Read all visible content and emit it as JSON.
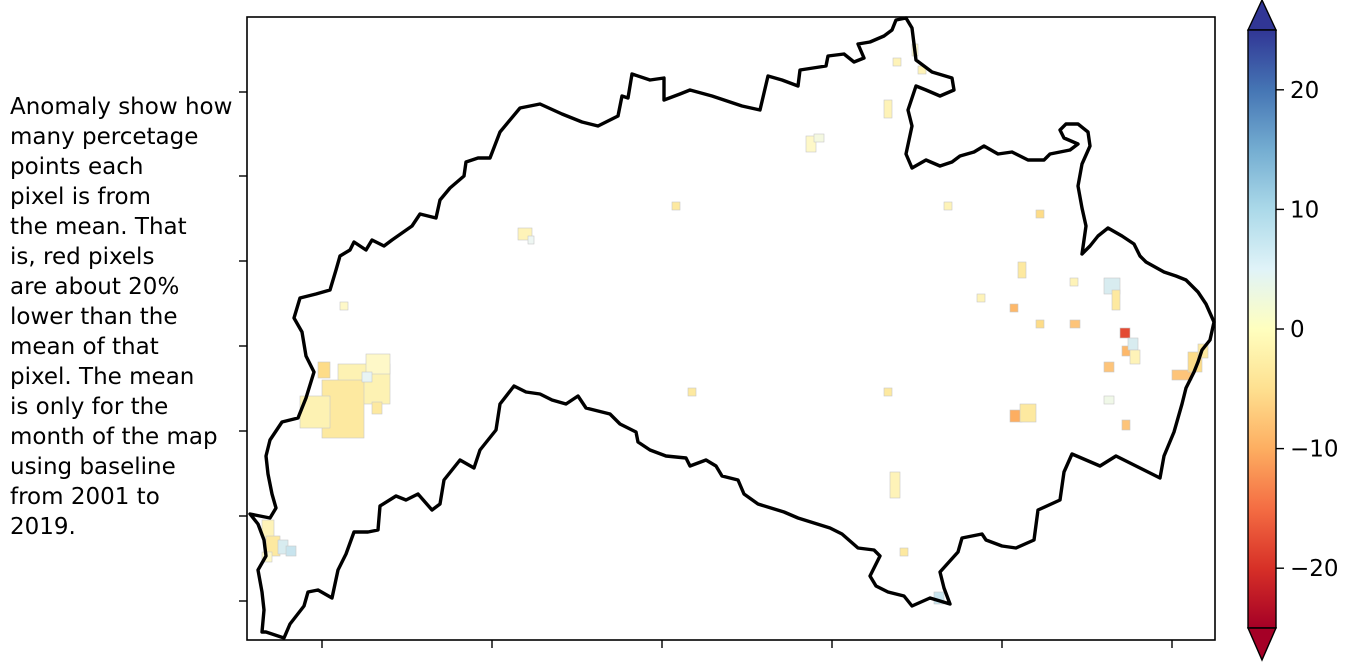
{
  "annotation": {
    "lines": [
      "Anomaly show how",
      "many percetage",
      "points each",
      "pixel is from",
      "the mean. That",
      "is, red pixels",
      "are about 20%",
      "lower than the",
      "mean of that",
      "pixel. The mean",
      "is only for the",
      "month of the map",
      "using baseline",
      "from 2001 to",
      "2019."
    ]
  },
  "colorbar": {
    "colormap": "RdYlBu",
    "extend": "both",
    "range": [
      -25,
      25
    ],
    "ticks": [
      {
        "value": 20,
        "label": "20"
      },
      {
        "value": 10,
        "label": "10"
      },
      {
        "value": 0,
        "label": "0"
      },
      {
        "value": -10,
        "label": "−10"
      },
      {
        "value": -20,
        "label": "−20"
      }
    ]
  },
  "map": {
    "x_tick_labels_shown": false,
    "y_tick_labels_shown": false,
    "boundary_color": "#000000"
  }
}
